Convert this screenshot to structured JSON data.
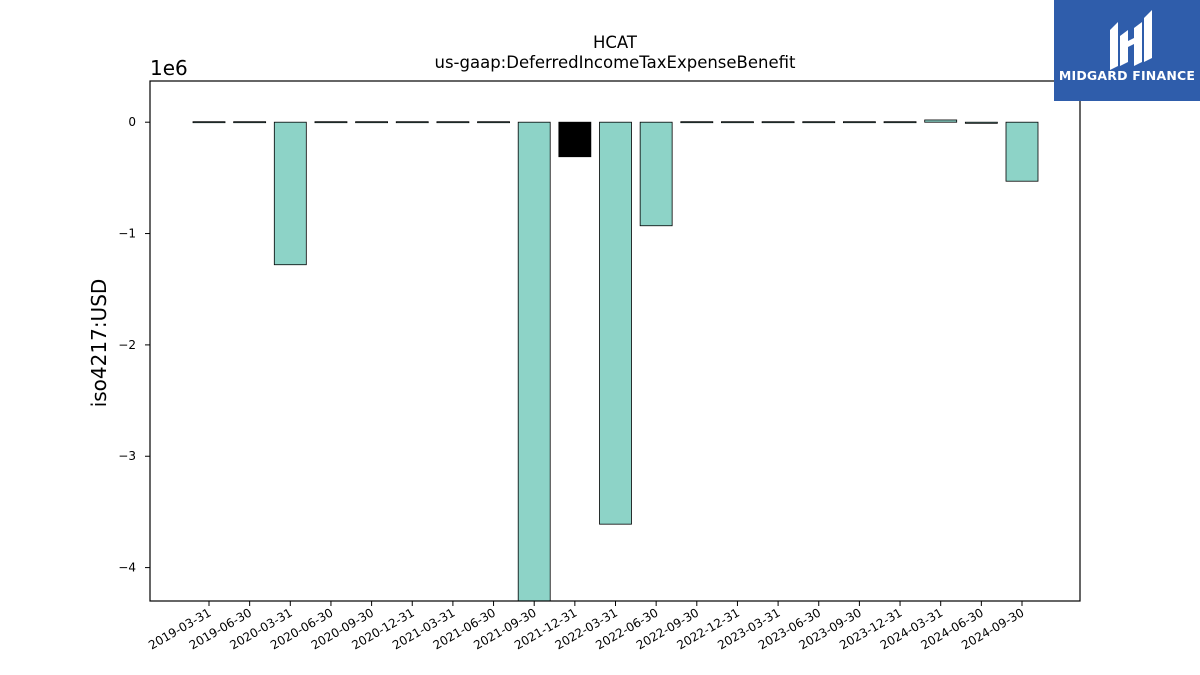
{
  "chart_data": {
    "type": "bar",
    "title": "HCAT",
    "subtitle": "us-gaap:DeferredIncomeTaxExpenseBenefit",
    "ylabel": "iso4217:USD",
    "xlabel": "",
    "offset_label": "1e6",
    "scale": 1000000,
    "ylim": [
      -4.3,
      0.37
    ],
    "yticks": [
      0,
      -1,
      -2,
      -3,
      -4
    ],
    "ytick_labels": [
      "0",
      "−1",
      "−2",
      "−3",
      "−4"
    ],
    "grid": false,
    "categories": [
      "2019-03-31",
      "2019-06-30",
      "2020-03-31",
      "2020-06-30",
      "2020-09-30",
      "2020-12-31",
      "2021-03-31",
      "2021-06-30",
      "2021-09-30",
      "2021-12-31",
      "2022-03-31",
      "2022-06-30",
      "2022-09-30",
      "2022-12-31",
      "2023-03-31",
      "2023-06-30",
      "2023-09-30",
      "2023-12-31",
      "2024-03-31",
      "2024-06-30",
      "2024-09-30"
    ],
    "values": [
      -0.003,
      -0.003,
      -1.28,
      -0.003,
      -0.003,
      0.005,
      0.005,
      0.005,
      -4.35,
      -0.31,
      -3.61,
      -0.93,
      0.005,
      0.005,
      0.005,
      0.005,
      0.005,
      0.005,
      0.02,
      -0.01,
      -0.53
    ],
    "highlight_index": 9,
    "colors": {
      "bar": "#8dd3c7",
      "highlight": "#000000",
      "edge": "#000000",
      "axis": "#000000"
    }
  },
  "logo": {
    "text": "MIDGARD FINANCE",
    "background": "#2f5dab",
    "icon": "midgard-monogram-icon"
  }
}
